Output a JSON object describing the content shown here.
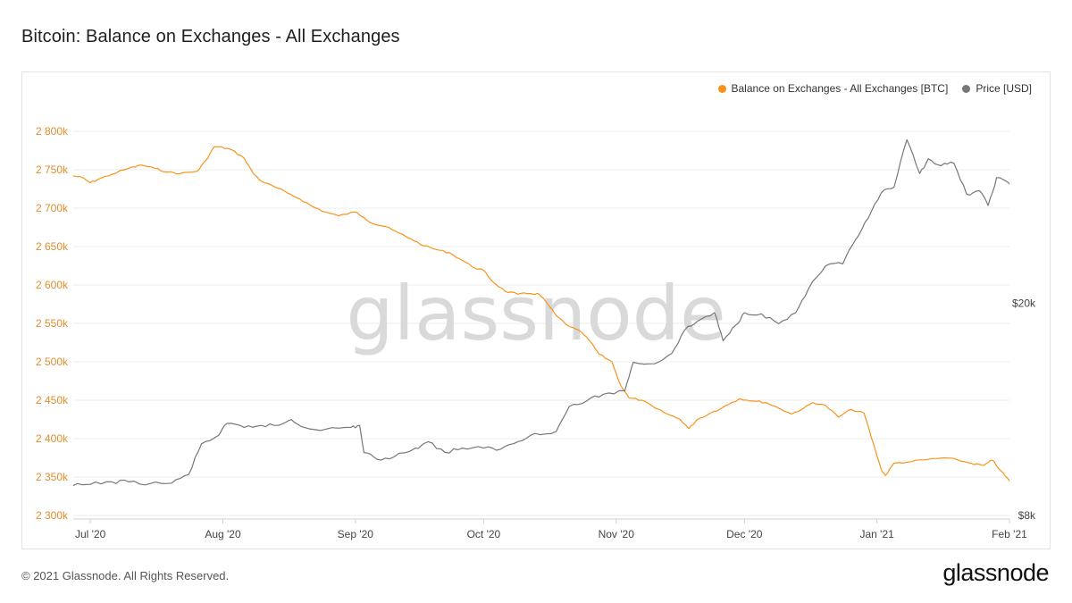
{
  "header": {
    "title": "Bitcoin: Balance on Exchanges - All Exchanges"
  },
  "legend": {
    "items": [
      {
        "label": "Balance on Exchanges - All Exchanges [BTC]",
        "color": "#f7931a"
      },
      {
        "label": "Price [USD]",
        "color": "#777777"
      }
    ]
  },
  "watermark": "glassnode",
  "footer": {
    "copyright": "© 2021 Glassnode. All Rights Reserved.",
    "logo": "glassnode"
  },
  "chart_data": {
    "type": "line",
    "title": "Bitcoin: Balance on Exchanges - All Exchanges",
    "x_tick_labels": [
      "Jul '20",
      "Aug '20",
      "Sep '20",
      "Oct '20",
      "Nov '20",
      "Dec '20",
      "Jan '21",
      "Feb '21"
    ],
    "x_tick_dates": [
      "2020-07-01",
      "2020-08-01",
      "2020-09-01",
      "2020-10-01",
      "2020-11-01",
      "2020-12-01",
      "2021-01-01",
      "2021-02-01"
    ],
    "xlim": [
      "2020-06-27",
      "2021-02-01"
    ],
    "y_left": {
      "tick_labels": [
        "2 300k",
        "2 350k",
        "2 400k",
        "2 450k",
        "2 500k",
        "2 550k",
        "2 600k",
        "2 650k",
        "2 700k",
        "2 750k",
        "2 800k"
      ],
      "tick_values": [
        2300000,
        2350000,
        2400000,
        2450000,
        2500000,
        2550000,
        2600000,
        2650000,
        2700000,
        2750000,
        2800000
      ],
      "ylim": [
        2300000,
        2800000
      ]
    },
    "y_right": {
      "tick_labels": [
        "$8k",
        "$20k"
      ],
      "tick_values": [
        8000,
        20000
      ],
      "scale": "log",
      "ylim": [
        8000,
        42000
      ]
    },
    "grid": "horizontal",
    "legend_position": "top-right",
    "series": [
      {
        "name": "Balance on Exchanges - All Exchanges [BTC]",
        "color": "#f7931a",
        "axis": "left",
        "points": [
          [
            "2020-06-27",
            2742000
          ],
          [
            "2020-06-29",
            2740000
          ],
          [
            "2020-07-01",
            2733000
          ],
          [
            "2020-07-03",
            2738000
          ],
          [
            "2020-07-06",
            2744000
          ],
          [
            "2020-07-10",
            2752000
          ],
          [
            "2020-07-13",
            2756000
          ],
          [
            "2020-07-16",
            2752000
          ],
          [
            "2020-07-19",
            2747000
          ],
          [
            "2020-07-22",
            2745000
          ],
          [
            "2020-07-26",
            2748000
          ],
          [
            "2020-07-28",
            2762000
          ],
          [
            "2020-07-30",
            2780000
          ],
          [
            "2020-08-01",
            2779000
          ],
          [
            "2020-08-03",
            2776000
          ],
          [
            "2020-08-06",
            2765000
          ],
          [
            "2020-08-08",
            2746000
          ],
          [
            "2020-08-10",
            2735000
          ],
          [
            "2020-08-13",
            2728000
          ],
          [
            "2020-08-16",
            2720000
          ],
          [
            "2020-08-19",
            2712000
          ],
          [
            "2020-08-22",
            2702000
          ],
          [
            "2020-08-25",
            2695000
          ],
          [
            "2020-08-28",
            2690000
          ],
          [
            "2020-09-01",
            2695000
          ],
          [
            "2020-09-03",
            2688000
          ],
          [
            "2020-09-05",
            2680000
          ],
          [
            "2020-09-08",
            2676000
          ],
          [
            "2020-09-11",
            2668000
          ],
          [
            "2020-09-14",
            2660000
          ],
          [
            "2020-09-17",
            2651000
          ],
          [
            "2020-09-20",
            2646000
          ],
          [
            "2020-09-23",
            2642000
          ],
          [
            "2020-09-26",
            2632000
          ],
          [
            "2020-09-29",
            2622000
          ],
          [
            "2020-10-01",
            2619000
          ],
          [
            "2020-10-03",
            2605000
          ],
          [
            "2020-10-06",
            2592000
          ],
          [
            "2020-10-09",
            2588000
          ],
          [
            "2020-10-12",
            2589000
          ],
          [
            "2020-10-14",
            2588000
          ],
          [
            "2020-10-16",
            2575000
          ],
          [
            "2020-10-18",
            2560000
          ],
          [
            "2020-10-21",
            2546000
          ],
          [
            "2020-10-24",
            2538000
          ],
          [
            "2020-10-26",
            2526000
          ],
          [
            "2020-10-28",
            2510000
          ],
          [
            "2020-10-31",
            2500000
          ],
          [
            "2020-11-02",
            2470000
          ],
          [
            "2020-11-04",
            2453000
          ],
          [
            "2020-11-07",
            2450000
          ],
          [
            "2020-11-10",
            2440000
          ],
          [
            "2020-11-13",
            2432000
          ],
          [
            "2020-11-16",
            2425000
          ],
          [
            "2020-11-18",
            2413000
          ],
          [
            "2020-11-20",
            2425000
          ],
          [
            "2020-11-23",
            2433000
          ],
          [
            "2020-11-26",
            2441000
          ],
          [
            "2020-11-28",
            2447000
          ],
          [
            "2020-11-30",
            2452000
          ],
          [
            "2020-12-03",
            2449000
          ],
          [
            "2020-12-06",
            2447000
          ],
          [
            "2020-12-09",
            2440000
          ],
          [
            "2020-12-12",
            2432000
          ],
          [
            "2020-12-15",
            2440000
          ],
          [
            "2020-12-17",
            2447000
          ],
          [
            "2020-12-20",
            2443000
          ],
          [
            "2020-12-23",
            2428000
          ],
          [
            "2020-12-26",
            2438000
          ],
          [
            "2020-12-29",
            2433000
          ],
          [
            "2020-12-31",
            2396000
          ],
          [
            "2021-01-02",
            2360000
          ],
          [
            "2021-01-03",
            2352000
          ],
          [
            "2021-01-05",
            2368000
          ],
          [
            "2021-01-09",
            2370000
          ],
          [
            "2021-01-13",
            2373000
          ],
          [
            "2021-01-17",
            2375000
          ],
          [
            "2021-01-20",
            2372000
          ],
          [
            "2021-01-23",
            2368000
          ],
          [
            "2021-01-26",
            2365000
          ],
          [
            "2021-01-28",
            2372000
          ],
          [
            "2021-01-30",
            2358000
          ],
          [
            "2021-02-01",
            2345000
          ]
        ]
      },
      {
        "name": "Price [USD]",
        "color": "#777777",
        "axis": "right",
        "points": [
          [
            "2020-06-27",
            9100
          ],
          [
            "2020-07-01",
            9150
          ],
          [
            "2020-07-06",
            9250
          ],
          [
            "2020-07-10",
            9250
          ],
          [
            "2020-07-15",
            9180
          ],
          [
            "2020-07-20",
            9200
          ],
          [
            "2020-07-24",
            9550
          ],
          [
            "2020-07-27",
            10900
          ],
          [
            "2020-07-31",
            11300
          ],
          [
            "2020-08-02",
            11900
          ],
          [
            "2020-08-06",
            11700
          ],
          [
            "2020-08-10",
            11800
          ],
          [
            "2020-08-14",
            11800
          ],
          [
            "2020-08-17",
            12100
          ],
          [
            "2020-08-20",
            11700
          ],
          [
            "2020-08-25",
            11600
          ],
          [
            "2020-08-31",
            11700
          ],
          [
            "2020-09-02",
            11800
          ],
          [
            "2020-09-03",
            10500
          ],
          [
            "2020-09-06",
            10200
          ],
          [
            "2020-09-10",
            10300
          ],
          [
            "2020-09-15",
            10700
          ],
          [
            "2020-09-18",
            11000
          ],
          [
            "2020-09-22",
            10500
          ],
          [
            "2020-09-26",
            10700
          ],
          [
            "2020-10-01",
            10700
          ],
          [
            "2020-10-05",
            10650
          ],
          [
            "2020-10-09",
            11000
          ],
          [
            "2020-10-13",
            11400
          ],
          [
            "2020-10-18",
            11500
          ],
          [
            "2020-10-21",
            12800
          ],
          [
            "2020-10-25",
            13100
          ],
          [
            "2020-10-29",
            13500
          ],
          [
            "2020-11-03",
            13700
          ],
          [
            "2020-11-05",
            15500
          ],
          [
            "2020-11-10",
            15400
          ],
          [
            "2020-11-14",
            16100
          ],
          [
            "2020-11-17",
            17800
          ],
          [
            "2020-11-20",
            18500
          ],
          [
            "2020-11-24",
            19200
          ],
          [
            "2020-11-26",
            17000
          ],
          [
            "2020-11-29",
            18200
          ],
          [
            "2020-12-01",
            19200
          ],
          [
            "2020-12-05",
            19100
          ],
          [
            "2020-12-09",
            18300
          ],
          [
            "2020-12-13",
            19200
          ],
          [
            "2020-12-16",
            21300
          ],
          [
            "2020-12-20",
            23500
          ],
          [
            "2020-12-24",
            23700
          ],
          [
            "2020-12-27",
            26300
          ],
          [
            "2020-12-30",
            28900
          ],
          [
            "2021-01-02",
            32200
          ],
          [
            "2021-01-05",
            33000
          ],
          [
            "2021-01-08",
            40500
          ],
          [
            "2021-01-11",
            35000
          ],
          [
            "2021-01-13",
            37300
          ],
          [
            "2021-01-16",
            36200
          ],
          [
            "2021-01-19",
            36600
          ],
          [
            "2021-01-22",
            32000
          ],
          [
            "2021-01-25",
            32500
          ],
          [
            "2021-01-27",
            30500
          ],
          [
            "2021-01-29",
            34400
          ],
          [
            "2021-02-01",
            33500
          ]
        ]
      }
    ]
  }
}
